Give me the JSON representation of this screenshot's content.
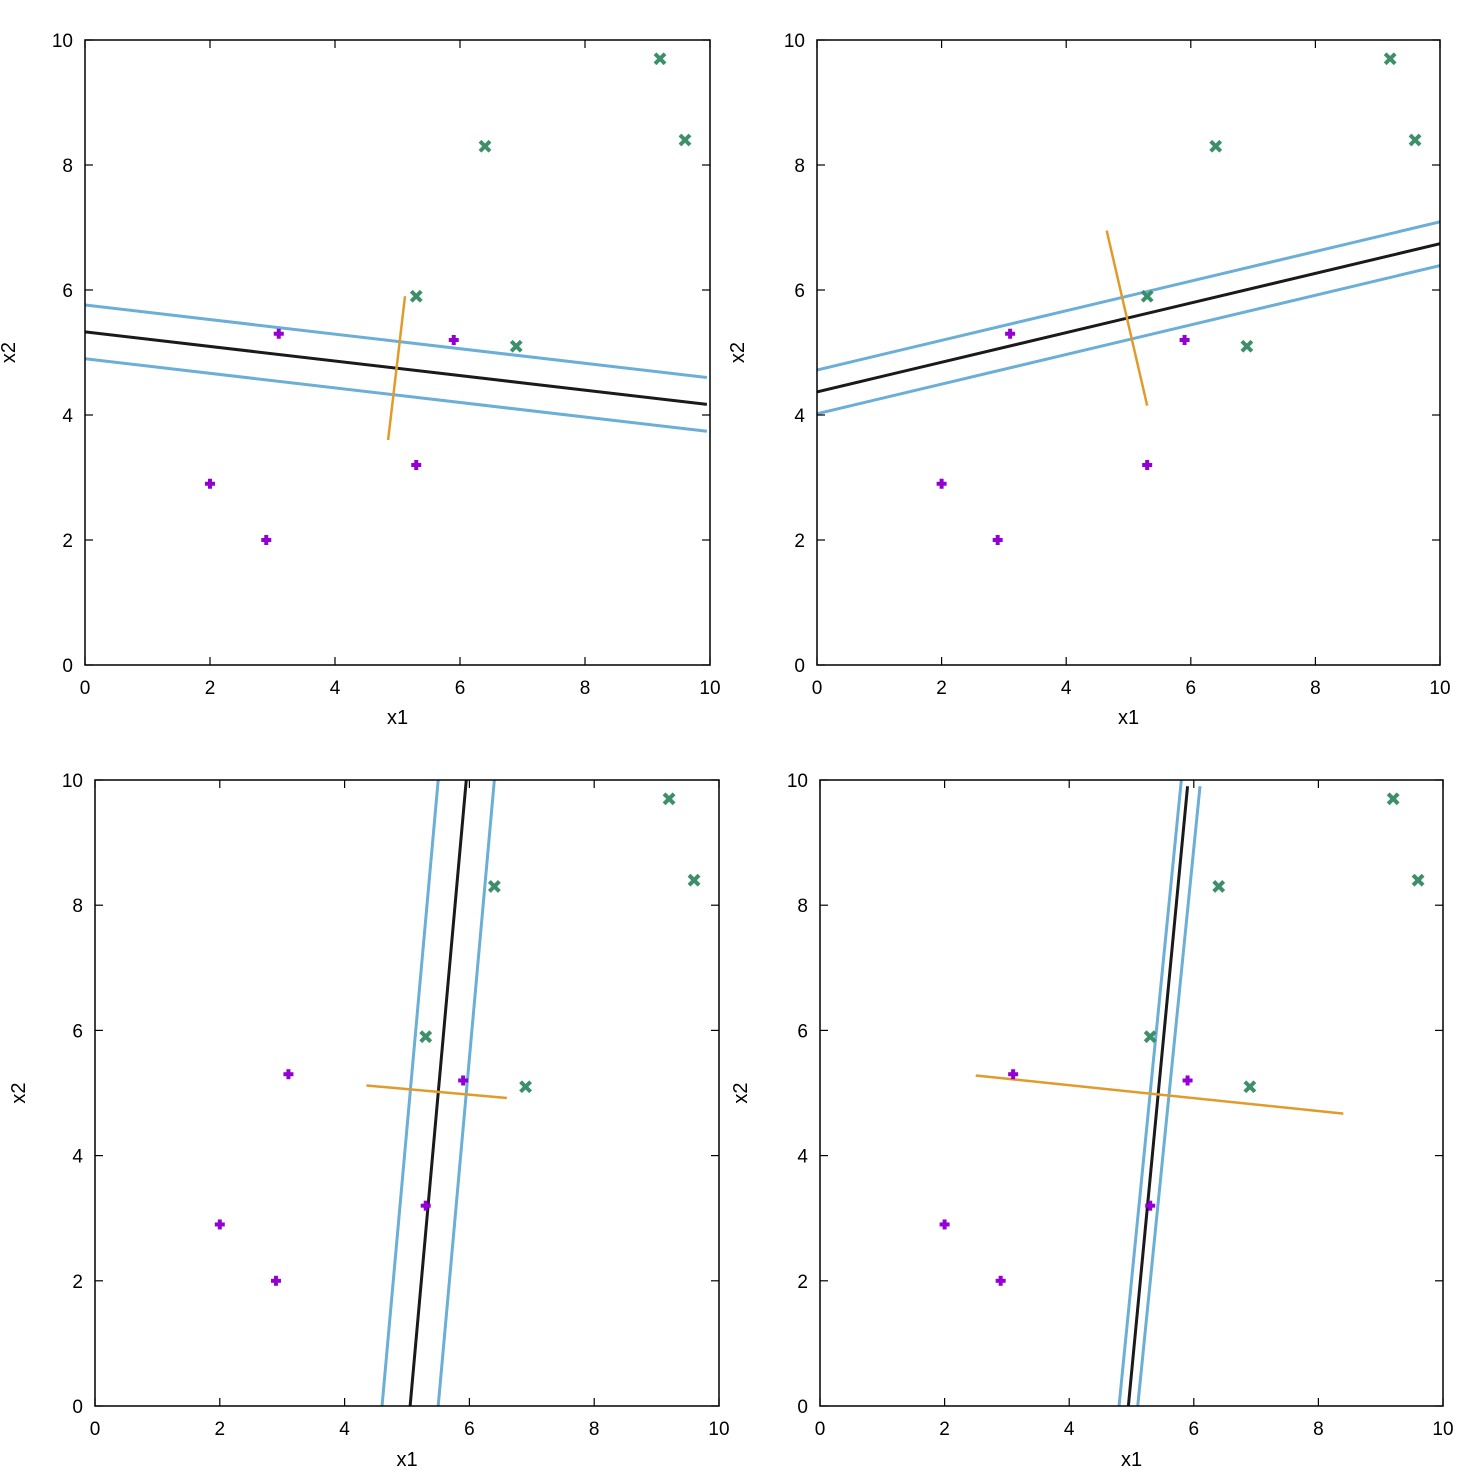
{
  "chart_data": [
    {
      "type": "scatter",
      "xlabel": "x1",
      "ylabel": "x2",
      "xlim": [
        0,
        10
      ],
      "ylim": [
        0,
        10
      ],
      "xticks": [
        "0",
        "2",
        "4",
        "6",
        "8",
        "10"
      ],
      "yticks": [
        "0",
        "2",
        "4",
        "6",
        "8",
        "10"
      ],
      "grid": false,
      "series": [
        {
          "marker": "plus",
          "color": "#9400d3",
          "x": [
            2,
            2.9,
            3.1,
            5.3,
            5.9
          ],
          "y": [
            2.9,
            2,
            5.3,
            3.2,
            5.2
          ]
        },
        {
          "marker": "cross",
          "color": "#3d8f6a",
          "x": [
            5.3,
            6.4,
            6.9,
            9.2,
            9.6
          ],
          "y": [
            5.9,
            8.3,
            5.1,
            9.7,
            8.4
          ]
        }
      ],
      "lines": [
        {
          "role": "decision-boundary",
          "color": "#1a1a1a",
          "x": [
            0,
            9.95
          ],
          "y": [
            5.33,
            4.17
          ]
        },
        {
          "role": "margin",
          "color": "#6baed6",
          "x": [
            0,
            9.95
          ],
          "y": [
            5.76,
            4.6
          ]
        },
        {
          "role": "margin",
          "color": "#6baed6",
          "x": [
            0,
            9.95
          ],
          "y": [
            4.9,
            3.74
          ]
        },
        {
          "role": "normal-vector",
          "color": "#e09b2a",
          "x": [
            4.85,
            5.12
          ],
          "y": [
            3.6,
            5.9
          ]
        }
      ]
    },
    {
      "type": "scatter",
      "xlabel": "x1",
      "ylabel": "x2",
      "xlim": [
        0,
        10
      ],
      "ylim": [
        0,
        10
      ],
      "xticks": [
        "0",
        "2",
        "4",
        "6",
        "8",
        "10"
      ],
      "yticks": [
        "0",
        "2",
        "4",
        "6",
        "8",
        "10"
      ],
      "grid": false,
      "series": [
        {
          "marker": "plus",
          "color": "#9400d3",
          "x": [
            2,
            2.9,
            3.1,
            5.3,
            5.9
          ],
          "y": [
            2.9,
            2,
            5.3,
            3.2,
            5.2
          ]
        },
        {
          "marker": "cross",
          "color": "#3d8f6a",
          "x": [
            5.3,
            6.4,
            6.9,
            9.2,
            9.6
          ],
          "y": [
            5.9,
            8.3,
            5.1,
            9.7,
            8.4
          ]
        }
      ],
      "lines": [
        {
          "role": "decision-boundary",
          "color": "#1a1a1a",
          "x": [
            0,
            10
          ],
          "y": [
            4.37,
            6.74
          ]
        },
        {
          "role": "margin",
          "color": "#6baed6",
          "x": [
            0,
            10
          ],
          "y": [
            4.72,
            7.09
          ]
        },
        {
          "role": "margin",
          "color": "#6baed6",
          "x": [
            0,
            10
          ],
          "y": [
            4.02,
            6.39
          ]
        },
        {
          "role": "normal-vector",
          "color": "#e09b2a",
          "x": [
            4.65,
            5.3
          ],
          "y": [
            6.95,
            4.15
          ]
        }
      ]
    },
    {
      "type": "scatter",
      "xlabel": "x1",
      "ylabel": "x2",
      "xlim": [
        0,
        10
      ],
      "ylim": [
        0,
        10
      ],
      "xticks": [
        "0",
        "2",
        "4",
        "6",
        "8",
        "10"
      ],
      "yticks": [
        "0",
        "2",
        "4",
        "6",
        "8",
        "10"
      ],
      "grid": false,
      "series": [
        {
          "marker": "plus",
          "color": "#9400d3",
          "x": [
            2,
            2.9,
            3.1,
            5.3,
            5.9
          ],
          "y": [
            2.9,
            2,
            5.3,
            3.2,
            5.2
          ]
        },
        {
          "marker": "cross",
          "color": "#3d8f6a",
          "x": [
            5.3,
            6.4,
            6.9,
            9.2,
            9.6
          ],
          "y": [
            5.9,
            8.3,
            5.1,
            9.7,
            8.4
          ]
        }
      ],
      "lines": [
        {
          "role": "decision-boundary",
          "color": "#1a1a1a",
          "x": [
            5.05,
            5.95
          ],
          "y": [
            0,
            10
          ]
        },
        {
          "role": "margin",
          "color": "#6baed6",
          "x": [
            4.6,
            5.5
          ],
          "y": [
            0,
            10
          ]
        },
        {
          "role": "margin",
          "color": "#6baed6",
          "x": [
            5.5,
            6.4
          ],
          "y": [
            0,
            10
          ]
        },
        {
          "role": "normal-vector",
          "color": "#e09b2a",
          "x": [
            4.35,
            6.6
          ],
          "y": [
            5.12,
            4.92
          ]
        }
      ]
    },
    {
      "type": "scatter",
      "xlabel": "x1",
      "ylabel": "x2",
      "xlim": [
        0,
        10
      ],
      "ylim": [
        0,
        10
      ],
      "xticks": [
        "0",
        "2",
        "4",
        "6",
        "8",
        "10"
      ],
      "yticks": [
        "0",
        "2",
        "4",
        "6",
        "8",
        "10"
      ],
      "grid": false,
      "series": [
        {
          "marker": "plus",
          "color": "#9400d3",
          "x": [
            2,
            2.9,
            3.1,
            5.3,
            5.9
          ],
          "y": [
            2.9,
            2,
            5.3,
            3.2,
            5.2
          ]
        },
        {
          "marker": "cross",
          "color": "#3d8f6a",
          "x": [
            5.3,
            6.4,
            6.9,
            9.2,
            9.6
          ],
          "y": [
            5.9,
            8.3,
            5.1,
            9.7,
            8.4
          ]
        }
      ],
      "lines": [
        {
          "role": "decision-boundary",
          "color": "#1a1a1a",
          "x": [
            4.95,
            5.9
          ],
          "y": [
            0,
            9.9
          ]
        },
        {
          "role": "margin",
          "color": "#6baed6",
          "x": [
            4.8,
            5.8
          ],
          "y": [
            0,
            10
          ]
        },
        {
          "role": "margin",
          "color": "#6baed6",
          "x": [
            5.1,
            6.1
          ],
          "y": [
            0,
            9.9
          ]
        },
        {
          "role": "normal-vector",
          "color": "#e09b2a",
          "x": [
            2.5,
            8.4
          ],
          "y": [
            5.28,
            4.67
          ]
        }
      ]
    }
  ]
}
